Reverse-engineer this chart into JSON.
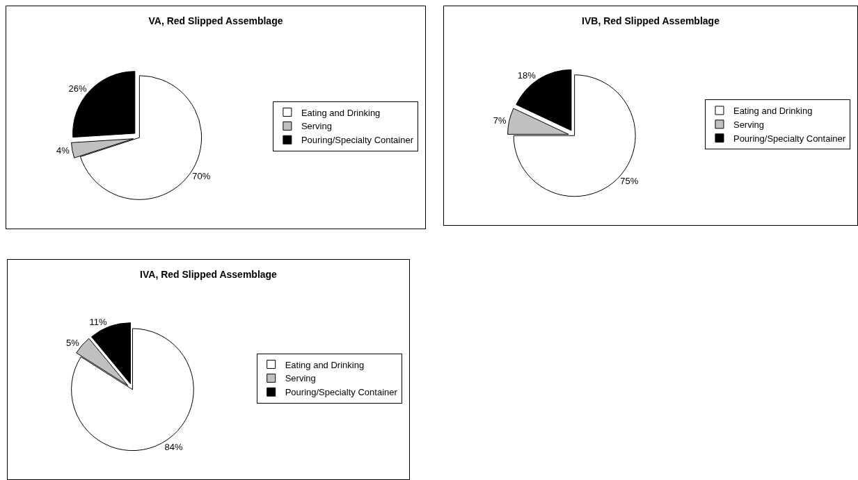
{
  "chart_data": [
    {
      "type": "pie",
      "title": "VA, Red Slipped Assemblage",
      "categories": [
        "Eating and Drinking",
        "Serving",
        "Pouring/Specialty Container"
      ],
      "values": [
        70,
        4,
        26
      ],
      "colors": [
        "#ffffff",
        "#c0c0c0",
        "#000000"
      ],
      "value_labels": [
        "70%",
        "4%",
        "26%"
      ],
      "legend": "right"
    },
    {
      "type": "pie",
      "title": "IVB, Red Slipped Assemblage",
      "categories": [
        "Eating and Drinking",
        "Serving",
        "Pouring/Specialty Container"
      ],
      "values": [
        75,
        7,
        18
      ],
      "colors": [
        "#ffffff",
        "#c0c0c0",
        "#000000"
      ],
      "value_labels": [
        "75%",
        "7%",
        "18%"
      ],
      "legend": "right"
    },
    {
      "type": "pie",
      "title": "IVA, Red Slipped Assemblage",
      "categories": [
        "Eating and Drinking",
        "Serving",
        "Pouring/Specialty Container"
      ],
      "values": [
        84,
        5,
        11
      ],
      "colors": [
        "#ffffff",
        "#c0c0c0",
        "#000000"
      ],
      "value_labels": [
        "84%",
        "5%",
        "11%"
      ],
      "legend": "right"
    }
  ]
}
